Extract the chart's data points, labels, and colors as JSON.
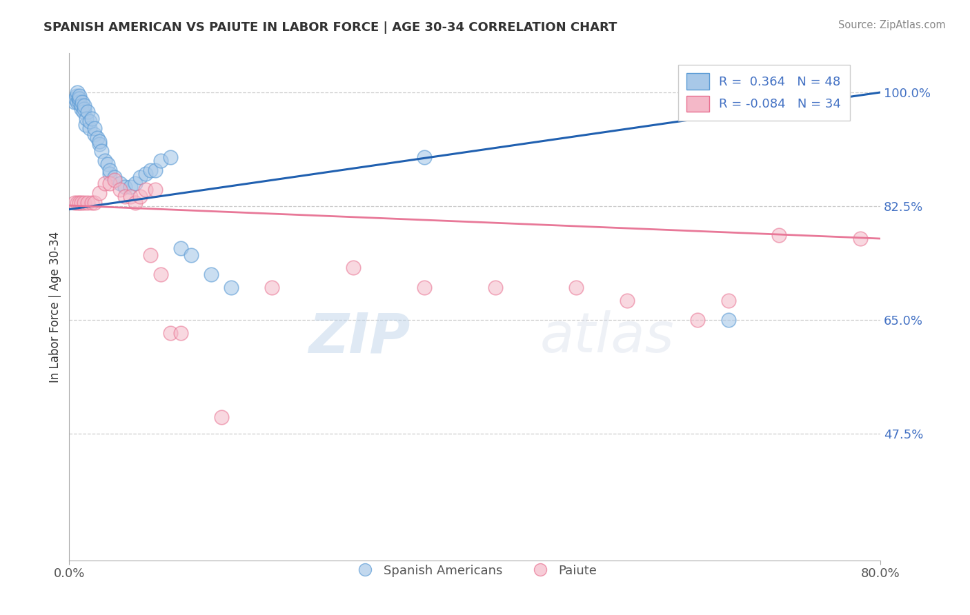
{
  "title": "SPANISH AMERICAN VS PAIUTE IN LABOR FORCE | AGE 30-34 CORRELATION CHART",
  "source_text": "Source: ZipAtlas.com",
  "ylabel": "In Labor Force | Age 30-34",
  "xlim": [
    0.0,
    0.8
  ],
  "ylim": [
    0.28,
    1.06
  ],
  "xtick_labels": [
    "0.0%",
    "80.0%"
  ],
  "xtick_vals": [
    0.0,
    0.8
  ],
  "ytick_labels": [
    "47.5%",
    "65.0%",
    "82.5%",
    "100.0%"
  ],
  "ytick_vals": [
    0.475,
    0.65,
    0.825,
    1.0
  ],
  "blue_color": "#a8c8e8",
  "blue_edge_color": "#5b9bd5",
  "pink_color": "#f4b8c8",
  "pink_edge_color": "#e87090",
  "blue_line_color": "#2060b0",
  "pink_line_color": "#e87898",
  "legend_blue_r": "0.364",
  "legend_blue_n": "48",
  "legend_pink_r": "-0.084",
  "legend_pink_n": "34",
  "legend_label_blue": "Spanish Americans",
  "legend_label_pink": "Paiute",
  "blue_trend_x0": 0.0,
  "blue_trend_y0": 0.82,
  "blue_trend_x1": 0.8,
  "blue_trend_y1": 1.0,
  "pink_trend_x0": 0.0,
  "pink_trend_y0": 0.826,
  "pink_trend_x1": 0.8,
  "pink_trend_y1": 0.775,
  "blue_scatter_x": [
    0.005,
    0.006,
    0.007,
    0.008,
    0.008,
    0.009,
    0.01,
    0.01,
    0.01,
    0.012,
    0.012,
    0.013,
    0.014,
    0.015,
    0.015,
    0.016,
    0.017,
    0.018,
    0.02,
    0.02,
    0.022,
    0.025,
    0.025,
    0.028,
    0.03,
    0.03,
    0.032,
    0.035,
    0.038,
    0.04,
    0.04,
    0.045,
    0.05,
    0.055,
    0.06,
    0.065,
    0.07,
    0.075,
    0.08,
    0.085,
    0.09,
    0.1,
    0.11,
    0.12,
    0.14,
    0.16,
    0.35,
    0.65
  ],
  "blue_scatter_y": [
    0.985,
    0.99,
    0.995,
    1.0,
    0.985,
    0.99,
    0.985,
    0.99,
    0.995,
    0.975,
    0.98,
    0.985,
    0.97,
    0.975,
    0.98,
    0.95,
    0.96,
    0.97,
    0.945,
    0.955,
    0.96,
    0.935,
    0.945,
    0.93,
    0.92,
    0.925,
    0.91,
    0.895,
    0.89,
    0.875,
    0.88,
    0.87,
    0.86,
    0.855,
    0.855,
    0.86,
    0.87,
    0.875,
    0.88,
    0.88,
    0.895,
    0.9,
    0.76,
    0.75,
    0.72,
    0.7,
    0.9,
    0.65
  ],
  "pink_scatter_x": [
    0.005,
    0.008,
    0.01,
    0.012,
    0.015,
    0.018,
    0.022,
    0.025,
    0.03,
    0.035,
    0.04,
    0.045,
    0.05,
    0.055,
    0.06,
    0.065,
    0.07,
    0.075,
    0.08,
    0.085,
    0.09,
    0.1,
    0.11,
    0.15,
    0.2,
    0.28,
    0.35,
    0.42,
    0.5,
    0.55,
    0.62,
    0.65,
    0.7,
    0.78
  ],
  "pink_scatter_y": [
    0.83,
    0.83,
    0.83,
    0.83,
    0.83,
    0.83,
    0.83,
    0.83,
    0.845,
    0.86,
    0.86,
    0.865,
    0.85,
    0.84,
    0.84,
    0.83,
    0.84,
    0.85,
    0.75,
    0.85,
    0.72,
    0.63,
    0.63,
    0.5,
    0.7,
    0.73,
    0.7,
    0.7,
    0.7,
    0.68,
    0.65,
    0.68,
    0.78,
    0.775
  ]
}
